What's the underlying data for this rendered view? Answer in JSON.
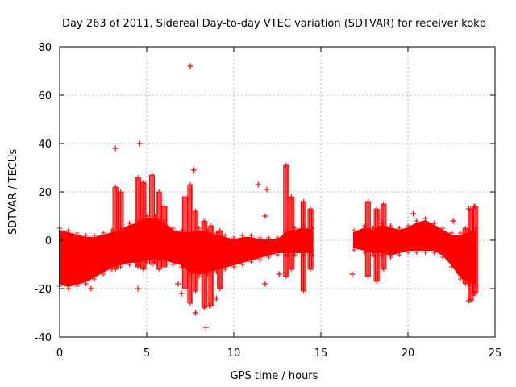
{
  "chart_data": {
    "type": "scatter",
    "title": "Day 263 of 2011, Sidereal Day-to-day VTEC variation (SDTVAR) for receiver kokb",
    "xlabel": "GPS time / hours",
    "ylabel": "SDTVAR / TECUs",
    "xlim": [
      0,
      25
    ],
    "ylim": [
      -40,
      80
    ],
    "xticks": [
      0,
      5,
      10,
      15,
      20,
      25
    ],
    "yticks": [
      -40,
      -20,
      0,
      20,
      40,
      60,
      80
    ],
    "grid": true,
    "marker": "+",
    "color": "#ff0000",
    "band_segments": [
      {
        "x": [
          0.0,
          0.5,
          1.0,
          1.5,
          2.0,
          2.5,
          3.0,
          3.5,
          4.0,
          4.5,
          5.0,
          5.5,
          6.0,
          6.5,
          7.0,
          7.5,
          8.0,
          8.5,
          9.0,
          9.5,
          10.0,
          10.5,
          11.0,
          11.5,
          12.0,
          12.5,
          13.0,
          13.5,
          14.0,
          14.5
        ],
        "upper": [
          4,
          3,
          2,
          1,
          1,
          2,
          3,
          4,
          6,
          7,
          9,
          9,
          7,
          4,
          3,
          3,
          4,
          3,
          2,
          1,
          0,
          1,
          1,
          0,
          0,
          0,
          3,
          4,
          5,
          4
        ],
        "lower": [
          -18,
          -19,
          -18,
          -17,
          -15,
          -13,
          -11,
          -10,
          -9,
          -9,
          -8,
          -8,
          -8,
          -9,
          -10,
          -13,
          -14,
          -13,
          -12,
          -11,
          -10,
          -9,
          -8,
          -7,
          -6,
          -5,
          -5,
          -5,
          -5,
          -5
        ]
      },
      {
        "x": [
          16.9,
          17.5,
          18.0,
          18.5,
          19.0,
          19.5,
          20.0,
          20.5,
          21.0,
          21.5,
          22.0,
          22.5,
          23.0,
          23.5,
          23.9
        ],
        "upper": [
          3,
          5,
          4,
          6,
          5,
          4,
          5,
          7,
          8,
          6,
          4,
          2,
          2,
          3,
          4
        ],
        "lower": [
          -3,
          -4,
          -5,
          -5,
          -6,
          -5,
          -4,
          -4,
          -4,
          -4,
          -6,
          -10,
          -15,
          -17,
          -18
        ]
      }
    ],
    "spikes": [
      {
        "x": 3.2,
        "lo": -12,
        "hi": 22
      },
      {
        "x": 3.5,
        "lo": -10,
        "hi": 20
      },
      {
        "x": 4.5,
        "lo": -11,
        "hi": 26
      },
      {
        "x": 4.8,
        "lo": -12,
        "hi": 24
      },
      {
        "x": 5.3,
        "lo": -10,
        "hi": 27
      },
      {
        "x": 5.7,
        "lo": -12,
        "hi": 20
      },
      {
        "x": 6.0,
        "lo": -11,
        "hi": 14
      },
      {
        "x": 7.2,
        "lo": -20,
        "hi": 18
      },
      {
        "x": 7.5,
        "lo": -26,
        "hi": 23
      },
      {
        "x": 7.8,
        "lo": -21,
        "hi": 12
      },
      {
        "x": 8.3,
        "lo": -28,
        "hi": 8
      },
      {
        "x": 8.7,
        "lo": -27,
        "hi": 6
      },
      {
        "x": 9.2,
        "lo": -20,
        "hi": 4
      },
      {
        "x": 13.0,
        "lo": -15,
        "hi": 31
      },
      {
        "x": 13.3,
        "lo": -12,
        "hi": 18
      },
      {
        "x": 14.0,
        "lo": -21,
        "hi": 16
      },
      {
        "x": 14.4,
        "lo": -12,
        "hi": 13
      },
      {
        "x": 17.7,
        "lo": -15,
        "hi": 16
      },
      {
        "x": 18.2,
        "lo": -17,
        "hi": 13
      },
      {
        "x": 18.6,
        "lo": -12,
        "hi": 15
      },
      {
        "x": 23.3,
        "lo": -18,
        "hi": 5
      },
      {
        "x": 23.6,
        "lo": -25,
        "hi": 13
      },
      {
        "x": 23.85,
        "lo": -22,
        "hi": 14
      }
    ],
    "outliers": [
      {
        "x": 7.5,
        "y": 72
      },
      {
        "x": 4.6,
        "y": 40
      },
      {
        "x": 3.2,
        "y": 38
      },
      {
        "x": 7.7,
        "y": 29
      },
      {
        "x": 8.4,
        "y": -36
      },
      {
        "x": 7.0,
        "y": -22
      },
      {
        "x": 6.8,
        "y": -18
      },
      {
        "x": 7.8,
        "y": -30
      },
      {
        "x": 4.5,
        "y": -20
      },
      {
        "x": 1.8,
        "y": -20
      },
      {
        "x": 11.4,
        "y": 23
      },
      {
        "x": 11.9,
        "y": 21
      },
      {
        "x": 11.8,
        "y": 10
      },
      {
        "x": 11.8,
        "y": -18
      },
      {
        "x": 12.6,
        "y": -14
      },
      {
        "x": 16.8,
        "y": -14
      },
      {
        "x": 20.3,
        "y": 11
      },
      {
        "x": 22.6,
        "y": 8
      },
      {
        "x": 23.5,
        "y": 13
      },
      {
        "x": 23.8,
        "y": 14
      },
      {
        "x": 23.5,
        "y": -25
      },
      {
        "x": 23.8,
        "y": -22
      },
      {
        "x": 8.6,
        "y": -27
      },
      {
        "x": 9.0,
        "y": -24
      }
    ]
  }
}
